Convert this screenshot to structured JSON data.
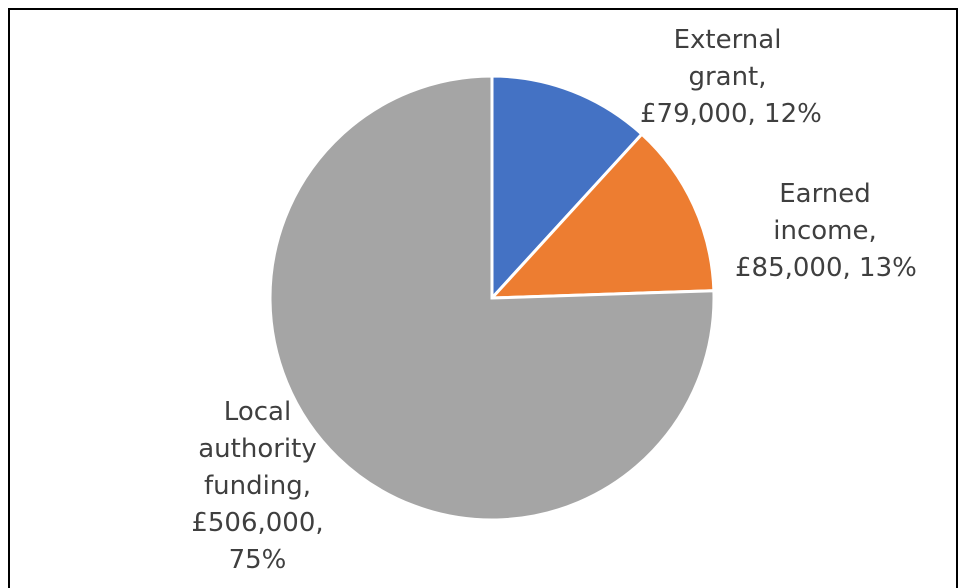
{
  "chart_data": {
    "type": "pie",
    "categories": [
      "External grant",
      "Earned income",
      "Local authority funding"
    ],
    "values": [
      79000,
      85000,
      506000
    ],
    "percentages": [
      12,
      13,
      75
    ],
    "colors": [
      "#4472c4",
      "#ed7d31",
      "#a5a5a5"
    ],
    "labels": [
      {
        "lines": [
          "External",
          "grant,",
          "£79,000, 12%"
        ]
      },
      {
        "lines": [
          "Earned",
          "income,",
          "£85,000, 13%"
        ]
      },
      {
        "lines": [
          "Local",
          "authority",
          "funding,",
          "£506,000,",
          "75%"
        ]
      }
    ]
  }
}
